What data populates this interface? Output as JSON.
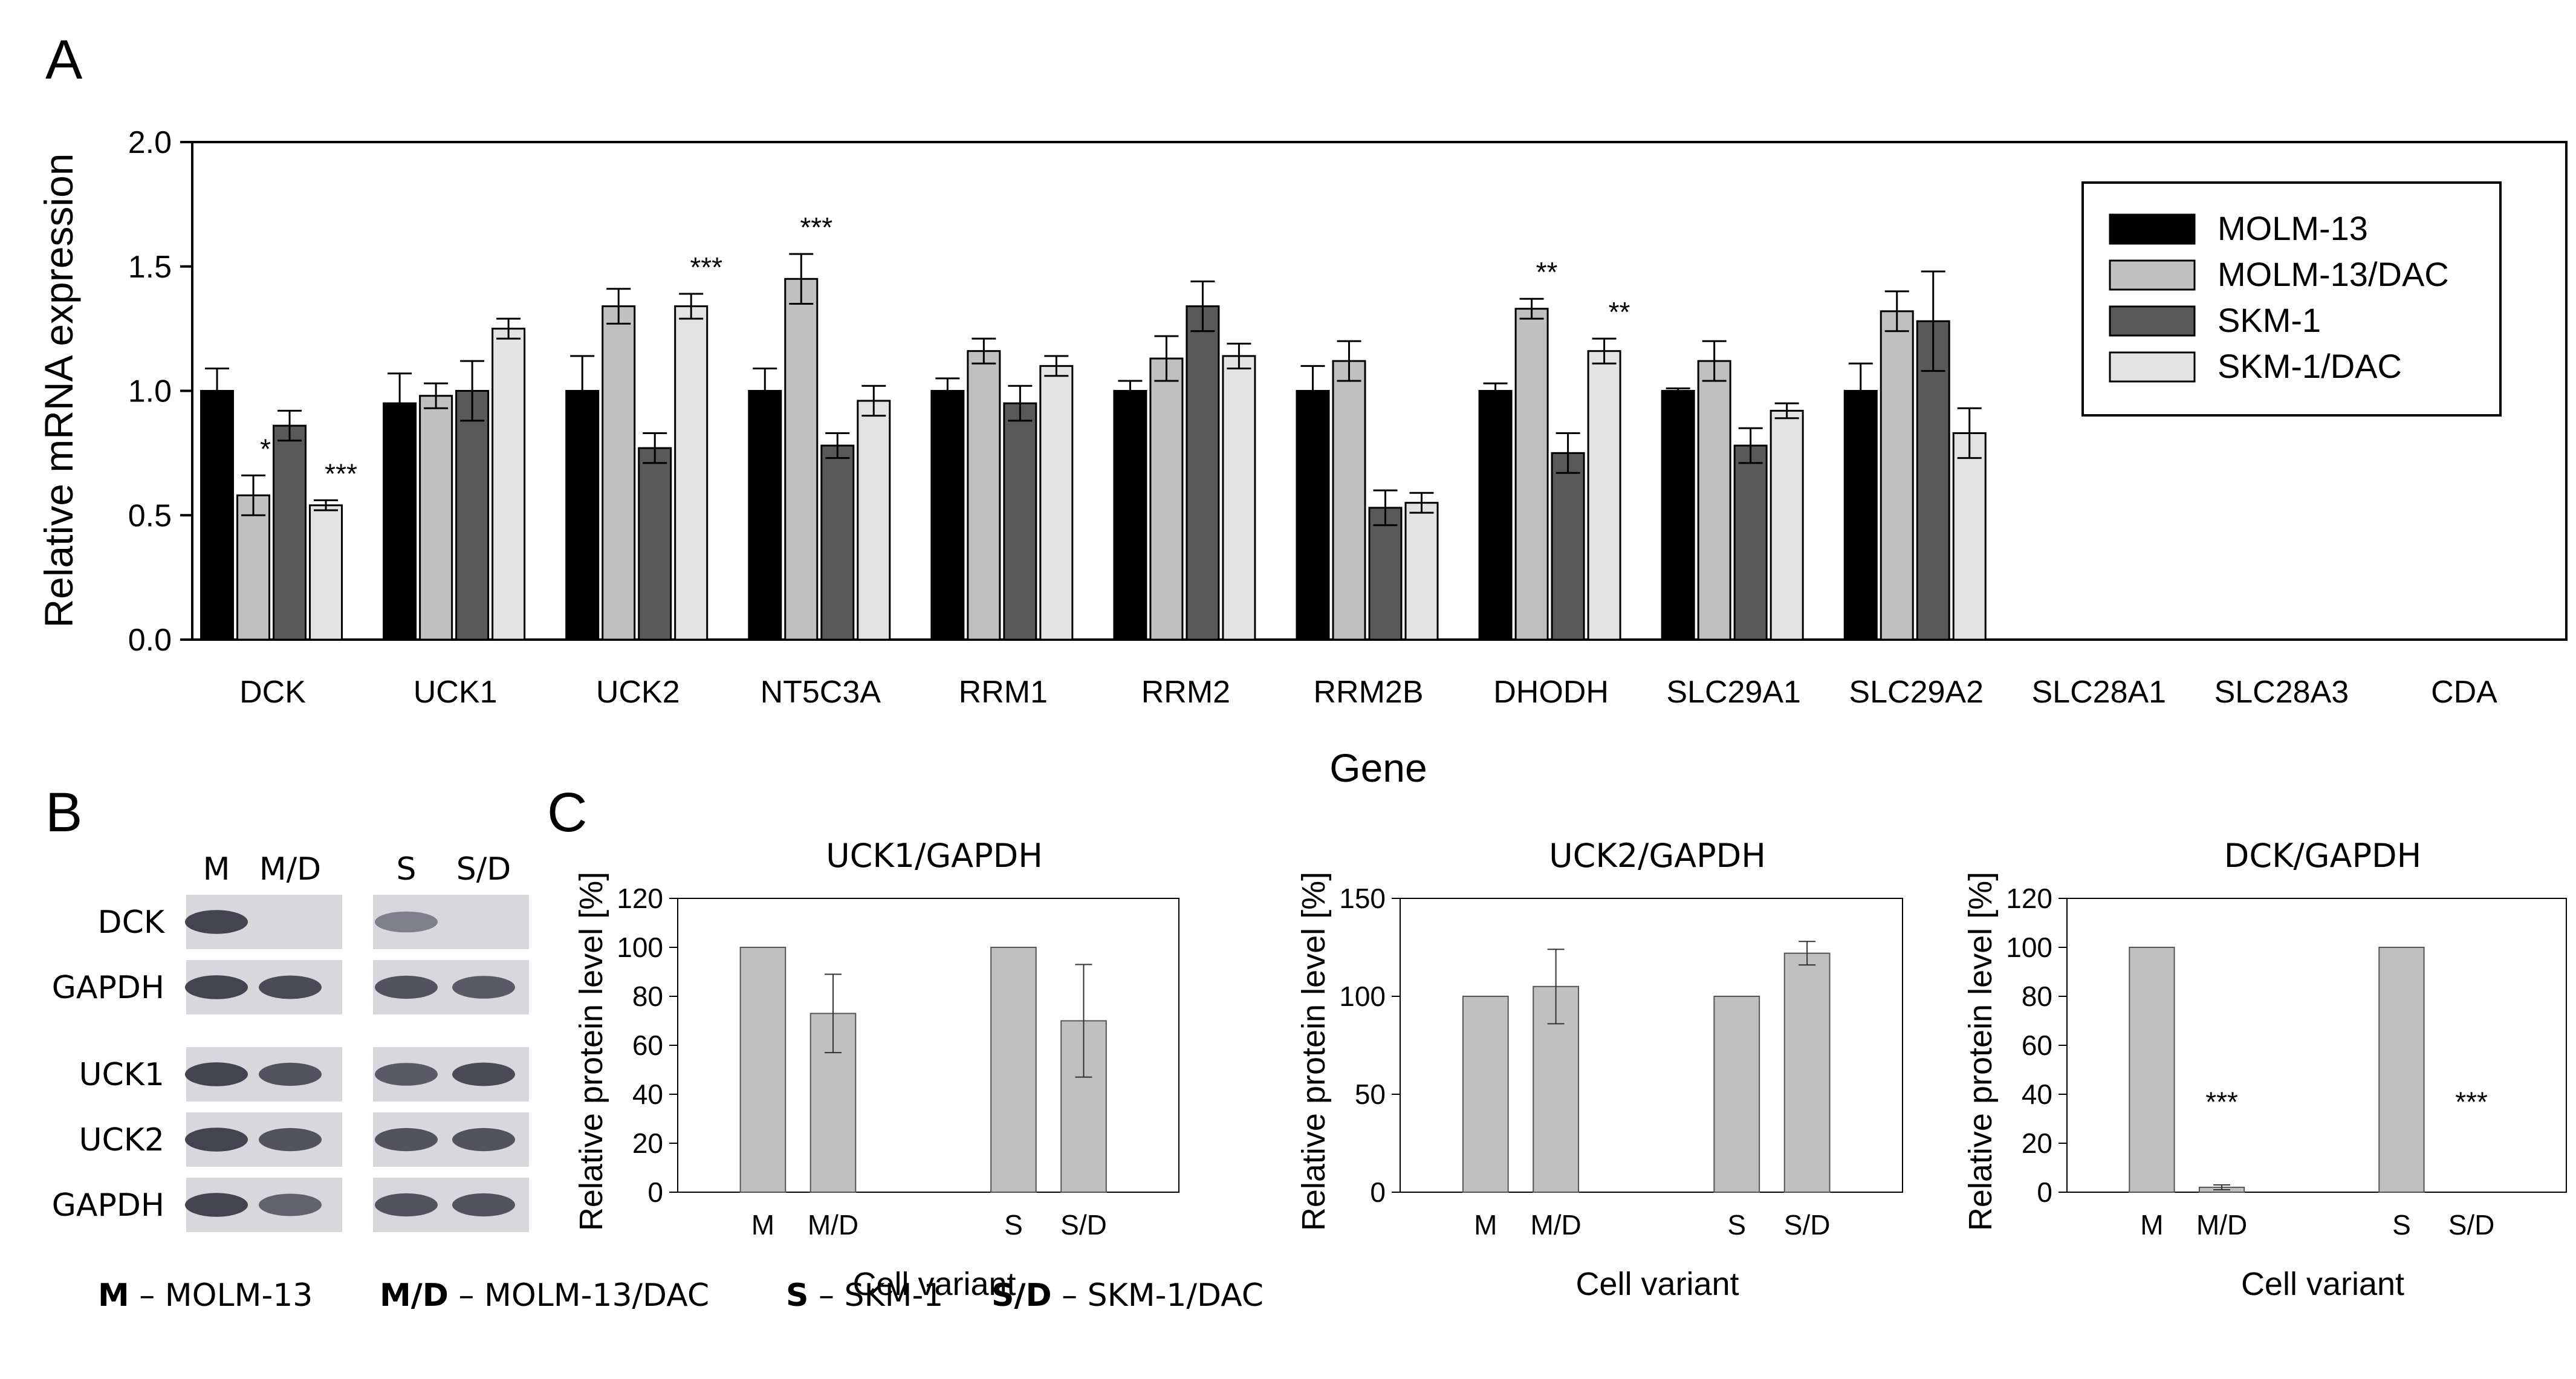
{
  "panels": {
    "a": "A",
    "b": "B",
    "c": "C"
  },
  "colors": {
    "molm13": "#000000",
    "molm13dac": "#c0c0c0",
    "skm1": "#595959",
    "skm1dac": "#e3e3e3",
    "protein_bar": "#c0c0c0",
    "axis": "#000000"
  },
  "chart_data": [
    {
      "id": "panelA",
      "type": "bar",
      "xlabel": "Gene",
      "ylabel": "Relative mRNA expression",
      "ylim": [
        0,
        2.0
      ],
      "yticks": [
        "0.0",
        "0.5",
        "1.0",
        "1.5",
        "2.0"
      ],
      "legend_position": "top-right",
      "categories": [
        "DCK",
        "UCK1",
        "UCK2",
        "NT5C3A",
        "RRM1",
        "RRM2",
        "RRM2B",
        "DHODH",
        "SLC29A1",
        "SLC29A2",
        "SLC28A1",
        "SLC28A3",
        "CDA"
      ],
      "series": [
        {
          "name": "MOLM-13",
          "values": [
            1.0,
            0.95,
            1.0,
            1.0,
            1.0,
            1.0,
            1.0,
            1.0,
            1.0,
            1.0,
            null,
            null,
            null
          ],
          "errors": [
            0.09,
            0.12,
            0.14,
            0.09,
            0.05,
            0.04,
            0.1,
            0.03,
            0.01,
            0.11,
            null,
            null,
            null
          ]
        },
        {
          "name": "MOLM-13/DAC",
          "values": [
            0.58,
            0.98,
            1.34,
            1.45,
            1.16,
            1.13,
            1.12,
            1.33,
            1.12,
            1.32,
            null,
            null,
            null
          ],
          "errors": [
            0.08,
            0.05,
            0.07,
            0.1,
            0.05,
            0.09,
            0.08,
            0.04,
            0.08,
            0.08,
            null,
            null,
            null
          ]
        },
        {
          "name": "SKM-1",
          "values": [
            0.86,
            1.0,
            0.77,
            0.78,
            0.95,
            1.34,
            0.53,
            0.75,
            0.78,
            1.28,
            null,
            null,
            null
          ],
          "errors": [
            0.06,
            0.12,
            0.06,
            0.05,
            0.07,
            0.1,
            0.07,
            0.08,
            0.07,
            0.2,
            null,
            null,
            null
          ]
        },
        {
          "name": "SKM-1/DAC",
          "values": [
            0.54,
            1.25,
            1.34,
            0.96,
            1.1,
            1.14,
            0.55,
            1.16,
            0.92,
            0.83,
            null,
            null,
            null
          ],
          "errors": [
            0.02,
            0.04,
            0.05,
            0.06,
            0.04,
            0.05,
            0.04,
            0.05,
            0.03,
            0.1,
            null,
            null,
            null
          ]
        }
      ],
      "annotations": [
        {
          "category": "DCK",
          "series": "MOLM-13/DAC",
          "text": "*"
        },
        {
          "category": "DCK",
          "series": "SKM-1/DAC",
          "text": "***"
        },
        {
          "category": "UCK2",
          "series": "SKM-1/DAC",
          "text": "***"
        },
        {
          "category": "NT5C3A",
          "series": "MOLM-13/DAC",
          "text": "***"
        },
        {
          "category": "DHODH",
          "series": "MOLM-13/DAC",
          "text": "**"
        },
        {
          "category": "DHODH",
          "series": "SKM-1/DAC",
          "text": "**"
        }
      ]
    },
    {
      "id": "panelC1",
      "type": "bar",
      "title": "UCK1/GAPDH",
      "xlabel": "Cell variant",
      "ylabel": "Relative protein level [%]",
      "ylim": [
        0,
        120
      ],
      "yticks": [
        "0",
        "20",
        "40",
        "60",
        "80",
        "100",
        "120"
      ],
      "categories": [
        "M",
        "M/D",
        "S",
        "S/D"
      ],
      "values": [
        100,
        73,
        100,
        70
      ],
      "errors": [
        0,
        16,
        0,
        23
      ],
      "annotations": []
    },
    {
      "id": "panelC2",
      "type": "bar",
      "title": "UCK2/GAPDH",
      "xlabel": "Cell variant",
      "ylabel": "Relative protein level [%]",
      "ylim": [
        0,
        150
      ],
      "yticks": [
        "0",
        "50",
        "100",
        "150"
      ],
      "categories": [
        "M",
        "M/D",
        "S",
        "S/D"
      ],
      "values": [
        100,
        105,
        100,
        122
      ],
      "errors": [
        0,
        19,
        0,
        6
      ],
      "annotations": []
    },
    {
      "id": "panelC3",
      "type": "bar",
      "title": "DCK/GAPDH",
      "xlabel": "Cell variant",
      "ylabel": "Relative protein level [%]",
      "ylim": [
        0,
        120
      ],
      "yticks": [
        "0",
        "20",
        "40",
        "60",
        "80",
        "100",
        "120"
      ],
      "categories": [
        "M",
        "M/D",
        "S",
        "S/D"
      ],
      "values": [
        100,
        2,
        100,
        0
      ],
      "errors": [
        0,
        1,
        0,
        0
      ],
      "annotations": [
        {
          "index": 1,
          "text": "***"
        },
        {
          "index": 3,
          "text": "***"
        }
      ]
    }
  ],
  "blot": {
    "column_labels": [
      "M",
      "M/D",
      "S",
      "S/D"
    ],
    "row_labels": [
      "DCK",
      "GAPDH",
      "UCK1",
      "UCK2",
      "GAPDH"
    ],
    "band_intensity": [
      [
        0.95,
        0.0,
        0.55,
        0.0
      ],
      [
        0.95,
        0.9,
        0.85,
        0.8
      ],
      [
        0.95,
        0.85,
        0.8,
        0.9
      ],
      [
        0.95,
        0.85,
        0.85,
        0.85
      ],
      [
        0.95,
        0.75,
        0.85,
        0.85
      ]
    ]
  },
  "key": [
    {
      "abbr": "M",
      "text": " – MOLM-13"
    },
    {
      "abbr": "M/D",
      "text": " – MOLM-13/DAC"
    },
    {
      "abbr": "S",
      "text": " – SKM-1"
    },
    {
      "abbr": "S/D",
      "text": " – SKM-1/DAC"
    }
  ]
}
